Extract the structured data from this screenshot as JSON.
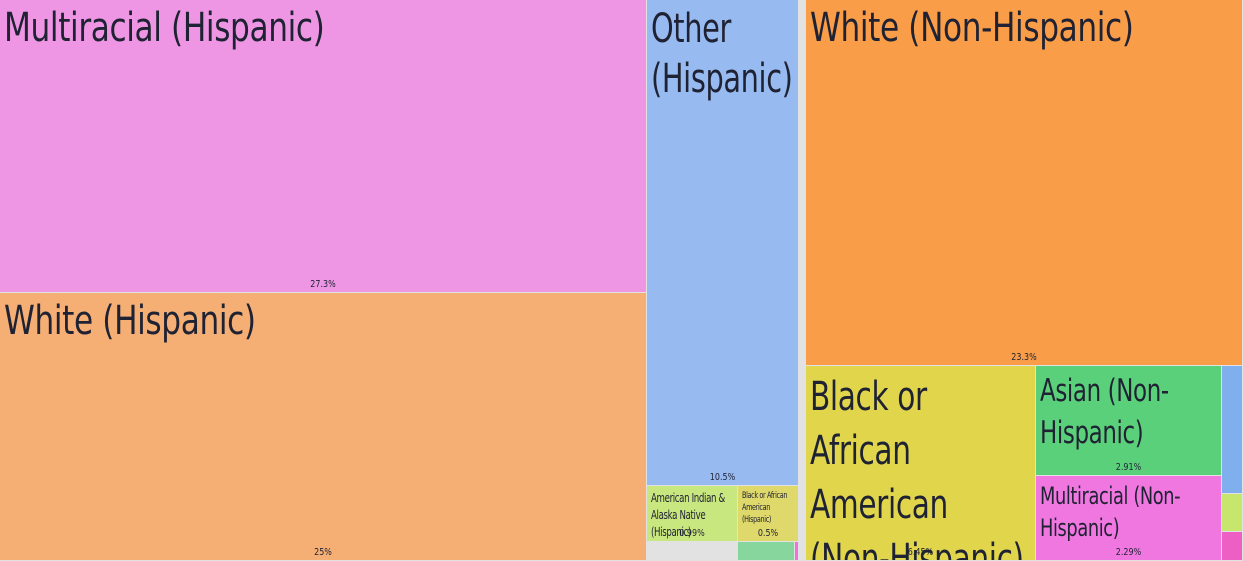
{
  "chart_data": {
    "type": "treemap",
    "unit": "%",
    "items": [
      {
        "name": "Multiracial (Hispanic)",
        "value_label": "27.3%",
        "value": 27.3,
        "color": "#ee96e4"
      },
      {
        "name": "White (Hispanic)",
        "value_label": "25%",
        "value": 25,
        "color": "#f5ae73"
      },
      {
        "name": "Other (Hispanic)",
        "value_label": "10.5%",
        "value": 10.5,
        "color": "#97baf1"
      },
      {
        "name": "American Indian & Alaska Native (Hispanic)",
        "value_label": "0.99%",
        "value": 0.99,
        "color": "#c9e77f"
      },
      {
        "name": "Black or African American (Hispanic)",
        "value_label": "0.5%",
        "value": 0.5,
        "color": "#dfd86a"
      },
      {
        "name": "White (Non-Hispanic)",
        "value_label": "23.3%",
        "value": 23.3,
        "color": "#f99d48"
      },
      {
        "name": "Black or African American (Non-Hispanic)",
        "value_label": "6.45%",
        "value": 6.45,
        "color": "#e1d54c"
      },
      {
        "name": "Asian (Non-Hispanic)",
        "value_label": "2.91%",
        "value": 2.91,
        "color": "#5bd07a"
      },
      {
        "name": "Multiracial (Non-Hispanic)",
        "value_label": "2.29%",
        "value": 2.29,
        "color": "#ef77df"
      },
      {
        "name": "",
        "value_label": "",
        "color": "#86d69e"
      },
      {
        "name": "",
        "value_label": "",
        "color": "#ee71dd"
      },
      {
        "name": "",
        "value_label": "",
        "color": "#80afee"
      },
      {
        "name": "",
        "value_label": "",
        "color": "#c7e66e"
      },
      {
        "name": "",
        "value_label": "",
        "color": "#ee5fc3"
      }
    ]
  }
}
